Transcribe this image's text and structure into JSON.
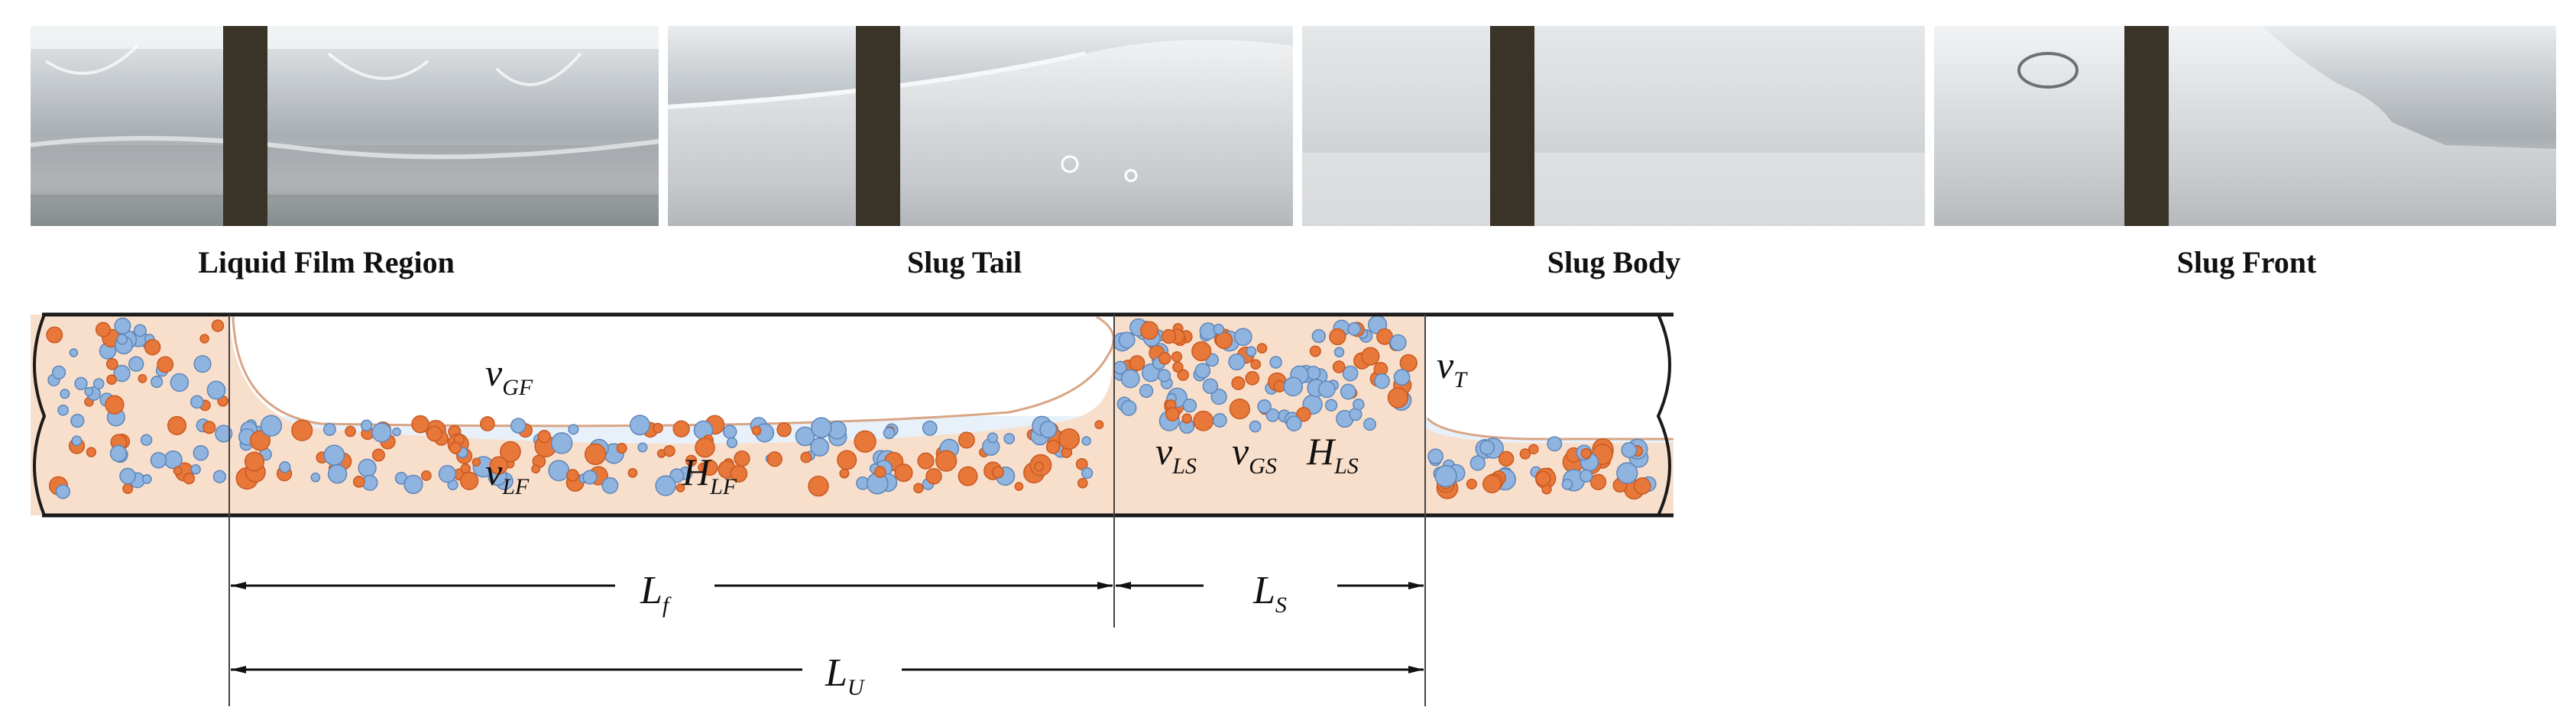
{
  "photos": [
    {
      "label": "Liquid Film Region"
    },
    {
      "label": "Slug Tail"
    },
    {
      "label": "Slug Body"
    },
    {
      "label": "Slug Front"
    }
  ],
  "symbols": {
    "v_GF": {
      "main": "v",
      "sub": "GF"
    },
    "v_T": {
      "main": "v",
      "sub": "T"
    },
    "v_LF": {
      "main": "v",
      "sub": "LF"
    },
    "H_LF": {
      "main": "H",
      "sub": "LF"
    },
    "v_LS": {
      "main": "v",
      "sub": "LS"
    },
    "v_GS": {
      "main": "v",
      "sub": "GS"
    },
    "H_LS": {
      "main": "H",
      "sub": "LS"
    },
    "L_f": {
      "main": "L",
      "sub": "f"
    },
    "L_S": {
      "main": "L",
      "sub": "S"
    },
    "L_U": {
      "main": "L",
      "sub": "U"
    }
  },
  "colors": {
    "pipe_wall": "#1a1a1a",
    "liquid_film": "#f8dfcc",
    "liquid_blue": "#e8f1fa",
    "bubble_blue": "#8fb4e0",
    "bubble_orange": "#e8773a",
    "tape": "#3a3328"
  }
}
